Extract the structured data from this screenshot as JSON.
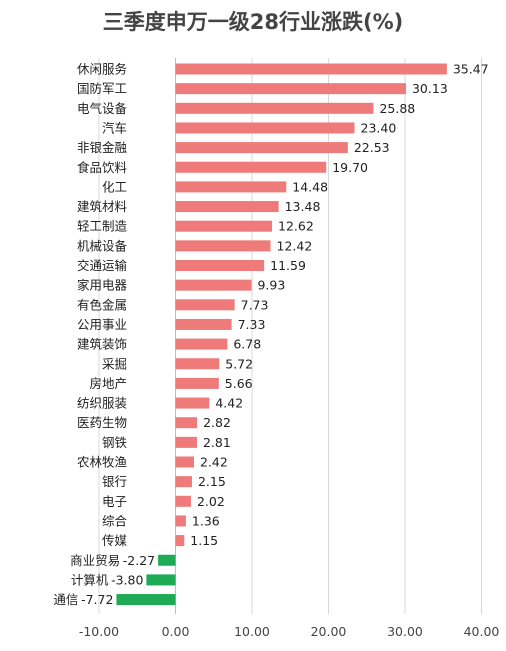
{
  "chart_data": {
    "type": "bar",
    "orientation": "horizontal",
    "title": "三季度申万一级28行业涨跌(%)",
    "categories": [
      "休闲服务",
      "国防军工",
      "电气设备",
      "汽车",
      "非银金融",
      "食品饮料",
      "化工",
      "建筑材料",
      "轻工制造",
      "机械设备",
      "交通运输",
      "家用电器",
      "有色金属",
      "公用事业",
      "建筑装饰",
      "采掘",
      "房地产",
      "纺织服装",
      "医药生物",
      "钢铁",
      "农林牧渔",
      "银行",
      "电子",
      "综合",
      "传媒",
      "商业贸易",
      "计算机",
      "通信"
    ],
    "values": [
      35.47,
      30.13,
      25.88,
      23.4,
      22.53,
      19.7,
      14.48,
      13.48,
      12.62,
      12.42,
      11.59,
      9.93,
      7.73,
      7.33,
      6.78,
      5.72,
      5.66,
      4.42,
      2.82,
      2.81,
      2.42,
      2.15,
      2.02,
      1.36,
      1.15,
      -2.27,
      -3.8,
      -7.72
    ],
    "value_labels": [
      "35.47",
      "30.13",
      "25.88",
      "23.40",
      "22.53",
      "19.70",
      "14.48",
      "13.48",
      "12.62",
      "12.42",
      "11.59",
      "9.93",
      "7.73",
      "7.33",
      "6.78",
      "5.72",
      "5.66",
      "4.42",
      "2.82",
      "2.81",
      "2.42",
      "2.15",
      "2.02",
      "1.36",
      "1.15",
      "-2.27",
      "-3.80",
      "-7.72"
    ],
    "xlim": [
      -10,
      40
    ],
    "x_ticks": [
      -10,
      0,
      10,
      20,
      30,
      40
    ],
    "x_tick_labels": [
      "-10.00",
      "0.00",
      "10.00",
      "20.00",
      "30.00",
      "40.00"
    ],
    "grid": "vertical",
    "colors": {
      "positive": "#ee7a7a",
      "negative": "#1faa55"
    }
  }
}
